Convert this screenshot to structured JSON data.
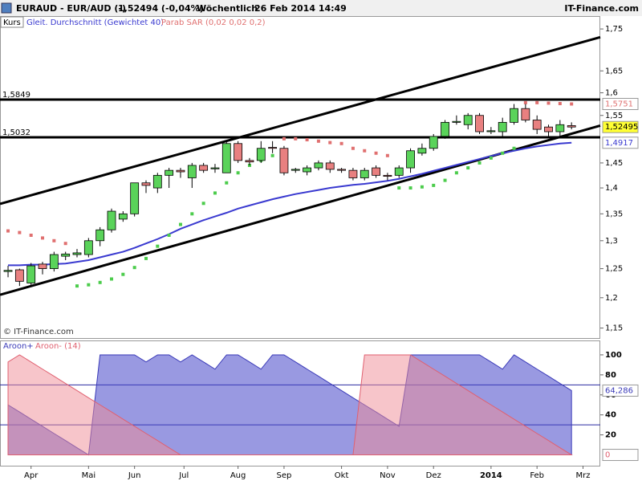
{
  "header": {
    "symbol": "EURAUD - EUR/AUD (-)",
    "quote": "1,52494 (-0,04%)",
    "interval": "Wöchentlich",
    "datetime": "26 Feb 2014 14:49",
    "brand": "IT-Finance.com",
    "watermark": "© IT-Finance.com"
  },
  "chart_data": [
    {
      "type": "candlestick",
      "log_scale": true,
      "up_color": "#5ad35a",
      "down_color": "#e88080",
      "categories": [
        null,
        null,
        null,
        null,
        null,
        null,
        null,
        null,
        null,
        null,
        null,
        null,
        null,
        null,
        null,
        null,
        null,
        null,
        null,
        null,
        null,
        null,
        null,
        null,
        null,
        null,
        null,
        null,
        null,
        null,
        null,
        null,
        null,
        null,
        null,
        null,
        null,
        null,
        null,
        null,
        null,
        null,
        null,
        null,
        null,
        null,
        null,
        null,
        null,
        null
      ],
      "xlim": [
        -0.7,
        51.5
      ],
      "ylim": [
        1.134,
        1.78
      ],
      "yticks": [
        {
          "value": 1.15,
          "label": "1,15"
        },
        {
          "value": 1.2,
          "label": "1,2"
        },
        {
          "value": 1.25,
          "label": "1,25"
        },
        {
          "value": 1.3,
          "label": "1,3"
        },
        {
          "value": 1.35,
          "label": "1,35"
        },
        {
          "value": 1.4,
          "label": "1,4"
        },
        {
          "value": 1.45,
          "label": "1,45"
        },
        {
          "value": 1.55,
          "label": "1,55"
        },
        {
          "value": 1.6,
          "label": "1,6"
        },
        {
          "value": 1.65,
          "label": "1,65"
        },
        {
          "value": 1.75,
          "label": "1,75"
        }
      ],
      "series": [
        {
          "name": "Kurs",
          "type": "ohlc",
          "open": [
            1.245,
            1.248,
            1.225,
            1.258,
            1.25,
            1.272,
            1.275,
            1.275,
            1.3,
            1.32,
            1.34,
            1.35,
            1.41,
            1.4,
            1.425,
            1.435,
            1.42,
            1.445,
            1.438,
            1.43,
            1.49,
            1.455,
            1.455,
            1.482,
            1.48,
            1.435,
            1.432,
            1.44,
            1.45,
            1.437,
            1.435,
            1.42,
            1.44,
            1.425,
            1.425,
            1.44,
            1.47,
            1.48,
            1.505,
            1.535,
            1.53,
            1.55,
            1.515,
            1.515,
            1.535,
            1.565,
            1.54,
            1.525,
            1.515,
            1.528
          ],
          "high": [
            1.255,
            1.25,
            1.26,
            1.262,
            1.28,
            1.28,
            1.285,
            1.305,
            1.325,
            1.36,
            1.355,
            1.41,
            1.415,
            1.43,
            1.44,
            1.44,
            1.45,
            1.45,
            1.448,
            1.495,
            1.495,
            1.46,
            1.495,
            1.495,
            1.485,
            1.44,
            1.445,
            1.455,
            1.455,
            1.44,
            1.44,
            1.44,
            1.445,
            1.43,
            1.445,
            1.48,
            1.49,
            1.51,
            1.54,
            1.55,
            1.555,
            1.555,
            1.525,
            1.545,
            1.575,
            1.575,
            1.55,
            1.53,
            1.54,
            1.535
          ],
          "low": [
            1.235,
            1.22,
            1.22,
            1.24,
            1.245,
            1.265,
            1.27,
            1.27,
            1.29,
            1.315,
            1.335,
            1.345,
            1.39,
            1.39,
            1.4,
            1.42,
            1.4,
            1.43,
            1.43,
            1.43,
            1.45,
            1.445,
            1.45,
            1.47,
            1.425,
            1.43,
            1.425,
            1.435,
            1.43,
            1.43,
            1.415,
            1.415,
            1.42,
            1.415,
            1.42,
            1.43,
            1.465,
            1.475,
            1.5,
            1.53,
            1.52,
            1.51,
            1.51,
            1.505,
            1.53,
            1.535,
            1.51,
            1.505,
            1.505,
            1.52
          ],
          "close": [
            1.247,
            1.228,
            1.255,
            1.25,
            1.275,
            1.276,
            1.278,
            1.3,
            1.32,
            1.355,
            1.35,
            1.41,
            1.405,
            1.425,
            1.435,
            1.432,
            1.445,
            1.435,
            1.44,
            1.49,
            1.455,
            1.452,
            1.48,
            1.48,
            1.43,
            1.437,
            1.44,
            1.45,
            1.437,
            1.435,
            1.42,
            1.435,
            1.425,
            1.423,
            1.44,
            1.475,
            1.48,
            1.505,
            1.535,
            1.537,
            1.55,
            1.515,
            1.517,
            1.535,
            1.565,
            1.54,
            1.52,
            1.515,
            1.53,
            1.52495
          ]
        },
        {
          "name": "Gleit. Durchschnitt (Gewichtet 40)",
          "type": "line",
          "color": "#3a3ad0",
          "values": [
            1.256,
            1.256,
            1.257,
            1.257,
            1.258,
            1.259,
            1.262,
            1.265,
            1.27,
            1.275,
            1.28,
            1.287,
            1.295,
            1.303,
            1.312,
            1.322,
            1.33,
            1.338,
            1.345,
            1.352,
            1.36,
            1.366,
            1.372,
            1.378,
            1.383,
            1.388,
            1.392,
            1.396,
            1.4,
            1.403,
            1.406,
            1.408,
            1.411,
            1.414,
            1.418,
            1.423,
            1.428,
            1.434,
            1.44,
            1.446,
            1.452,
            1.458,
            1.464,
            1.47,
            1.475,
            1.48,
            1.484,
            1.487,
            1.49,
            1.4917
          ]
        },
        {
          "name": "Parab SAR (0,02 0,02 0,2)",
          "type": "dots",
          "color": "#e07070",
          "up_color": "#4ccc4c",
          "values": [
            1.318,
            1.315,
            1.31,
            1.305,
            1.3,
            1.295,
            1.22,
            1.222,
            1.226,
            1.232,
            1.24,
            1.252,
            1.268,
            1.29,
            1.31,
            1.33,
            1.35,
            1.37,
            1.39,
            1.41,
            1.43,
            1.445,
            1.455,
            1.465,
            1.5,
            1.5,
            1.498,
            1.495,
            1.492,
            1.49,
            1.48,
            1.475,
            1.47,
            1.465,
            1.4,
            1.4,
            1.402,
            1.405,
            1.415,
            1.43,
            1.44,
            1.45,
            1.46,
            1.47,
            1.48,
            1.578,
            1.578,
            1.577,
            1.576,
            1.5751
          ]
        }
      ],
      "trendlines": [
        {
          "x": [
            -0.7,
            51.5
          ],
          "y": [
            1.369,
            1.73
          ]
        },
        {
          "x": [
            -0.7,
            51.5
          ],
          "y": [
            1.205,
            1.528
          ]
        }
      ],
      "levels": [
        {
          "value": 1.5849,
          "label": "1,5849"
        },
        {
          "value": 1.5032,
          "label": "1,5032"
        }
      ],
      "tags": [
        {
          "value": 1.5751,
          "label": "1,5751",
          "color": "#e07070",
          "background": "#ffffff"
        },
        {
          "value": 1.52495,
          "label": "1,52495",
          "color": "#000000",
          "background": "#ffff33"
        },
        {
          "value": 1.4917,
          "label": "1,4917",
          "color": "#3a3ad0",
          "background": "#ffffff"
        }
      ]
    },
    {
      "type": "aroon",
      "xlim": [
        -0.7,
        51.5
      ],
      "ylim": [
        -10.8,
        113.6
      ],
      "yticks": [
        20,
        40,
        60,
        80,
        100
      ],
      "hlines": [
        30,
        70
      ],
      "xticks": [
        {
          "value": 2,
          "label": "Apr"
        },
        {
          "value": 7,
          "label": "Mai"
        },
        {
          "value": 11,
          "label": "Jun"
        },
        {
          "value": 15.3,
          "label": "Jul"
        },
        {
          "value": 20,
          "label": "Aug"
        },
        {
          "value": 24,
          "label": "Sep"
        },
        {
          "value": 29,
          "label": "Okt"
        },
        {
          "value": 33,
          "label": "Nov"
        },
        {
          "value": 37,
          "label": "Dez"
        },
        {
          "value": 42,
          "label": "2014"
        },
        {
          "value": 46,
          "label": "Feb"
        },
        {
          "value": 50,
          "label": "Mrz"
        }
      ],
      "series": [
        {
          "name": "Aroon+",
          "color": "#3a3ab8",
          "fill": "rgba(70,70,200,0.55)",
          "values": [
            50,
            42.9,
            35.7,
            28.6,
            21.4,
            14.3,
            7.1,
            0,
            100,
            100,
            100,
            100,
            92.9,
            100,
            100,
            92.9,
            100,
            92.9,
            85.7,
            100,
            100,
            92.9,
            85.7,
            100,
            100,
            92.9,
            85.7,
            78.6,
            71.4,
            64.3,
            57.1,
            50,
            42.9,
            35.7,
            28.6,
            100,
            100,
            100,
            100,
            100,
            100,
            100,
            92.9,
            85.7,
            100,
            92.9,
            85.7,
            78.6,
            71.4,
            64.286
          ]
        },
        {
          "name": "Aroon- (14)",
          "color": "#e06070",
          "fill": "rgba(240,140,150,0.5)",
          "values": [
            92.9,
            100,
            92.9,
            85.7,
            78.6,
            71.4,
            64.3,
            57.1,
            50,
            42.9,
            35.7,
            28.6,
            21.4,
            14.3,
            7.1,
            0,
            0,
            0,
            0,
            0,
            0,
            0,
            0,
            0,
            0,
            0,
            0,
            0,
            0,
            0,
            0,
            100,
            100,
            100,
            100,
            100,
            92.9,
            85.7,
            78.6,
            71.4,
            64.3,
            57.1,
            50,
            42.9,
            35.7,
            28.6,
            21.4,
            14.3,
            7.1,
            0
          ]
        }
      ],
      "tags": [
        {
          "value": 64.286,
          "label": "64,286",
          "color": "#3a3ab8",
          "background": "#ffffff"
        },
        {
          "value": 0,
          "label": "0",
          "color": "#e06070",
          "background": "#ffffff"
        }
      ]
    }
  ]
}
